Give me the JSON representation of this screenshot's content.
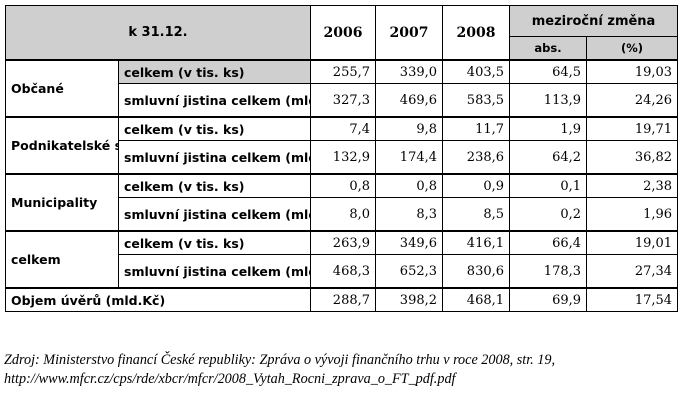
{
  "table": {
    "header": {
      "date_label": "k 31.12.",
      "years": [
        "2006",
        "2007",
        "2008"
      ],
      "change_label": "meziroční změna",
      "abs_label": "abs.",
      "pct_label": "(%)"
    },
    "groups": [
      {
        "label": "Občané",
        "rows": [
          {
            "label": "celkem (v tis. ks)",
            "values": [
              "255,7",
              "339,0",
              "403,5",
              "64,5",
              "19,03"
            ]
          },
          {
            "label": "smluvní jistina celkem (mld. Kč)",
            "values": [
              "327,3",
              "469,6",
              "583,5",
              "113,9",
              "24,26"
            ]
          }
        ]
      },
      {
        "label": "Podnikatelské subjekty",
        "rows": [
          {
            "label": "celkem (v tis. ks)",
            "values": [
              "7,4",
              "9,8",
              "11,7",
              "1,9",
              "19,71"
            ]
          },
          {
            "label": "smluvní jistina celkem (mld. Kč)",
            "values": [
              "132,9",
              "174,4",
              "238,6",
              "64,2",
              "36,82"
            ]
          }
        ]
      },
      {
        "label": "Municipality",
        "rows": [
          {
            "label": "celkem (v tis. ks)",
            "values": [
              "0,8",
              "0,8",
              "0,9",
              "0,1",
              "2,38"
            ]
          },
          {
            "label": "smluvní jistina celkem (mld. Kč)",
            "values": [
              "8,0",
              "8,3",
              "8,5",
              "0,2",
              "1,96"
            ]
          }
        ]
      },
      {
        "label": "celkem",
        "rows": [
          {
            "label": "celkem (v tis. ks)",
            "values": [
              "263,9",
              "349,6",
              "416,1",
              "66,4",
              "19,01"
            ]
          },
          {
            "label": "smluvní jistina celkem (mld. Kč)",
            "values": [
              "468,3",
              "652,3",
              "830,6",
              "178,3",
              "27,34"
            ]
          }
        ]
      }
    ],
    "total": {
      "label": "Objem úvěrů (mld.Kč)",
      "values": [
        "288,7",
        "398,2",
        "468,1",
        "69,9",
        "17,54"
      ]
    }
  },
  "source": {
    "line1": "Zdroj: Ministerstvo financí České republiky: Zpráva o vývoji finančního trhu v roce 2008, str. 19,",
    "line2": "http://www.mfcr.cz/cps/rde/xbcr/mfcr/2008_Vytah_Rocni_zprava_o_FT_pdf.pdf"
  },
  "colors": {
    "header_fill": "#cfcfcf",
    "border": "#000000"
  }
}
